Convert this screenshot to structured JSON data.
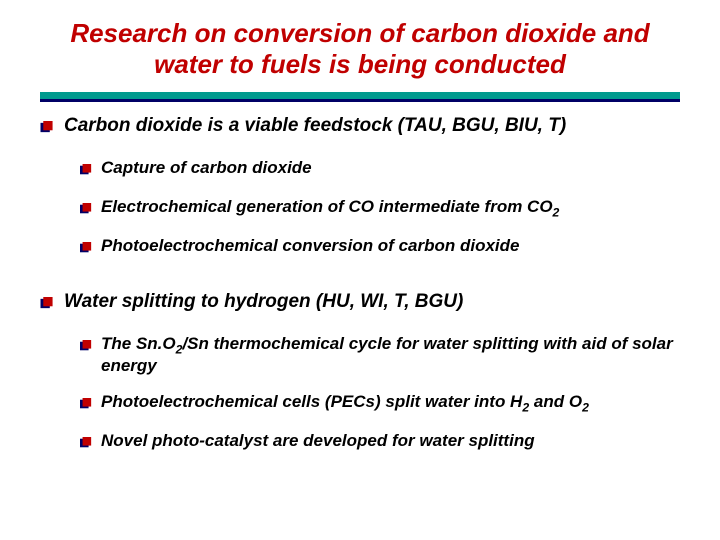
{
  "title_color": "#c00000",
  "text_color": "#000000",
  "rule": {
    "top_color": "#009a8e",
    "bottom_color": "#000066"
  },
  "bullet_colors": {
    "a": "#c00000",
    "b": "#000066"
  },
  "title": "Research on conversion of carbon dioxide and water to fuels is being conducted",
  "sections": [
    {
      "heading": "Carbon dioxide is a viable feedstock (TAU, BGU, BIU, T)",
      "items": [
        {
          "html": "Capture of carbon dioxide"
        },
        {
          "html": "Electrochemical generation of CO intermediate from CO<sub>2</sub>"
        },
        {
          "html": "Photoelectrochemical conversion of carbon dioxide"
        }
      ]
    },
    {
      "heading": "Water splitting to hydrogen (HU, WI, T, BGU)",
      "items": [
        {
          "html": "The Sn.O<sub>2</sub>/Sn thermochemical cycle for water splitting with aid of solar energy"
        },
        {
          "html": "Photoelectrochemical cells (PECs) split water into H<sub>2</sub> and O<sub>2</sub>"
        },
        {
          "html": "Novel photo-catalyst  are developed for water splitting"
        }
      ]
    }
  ]
}
